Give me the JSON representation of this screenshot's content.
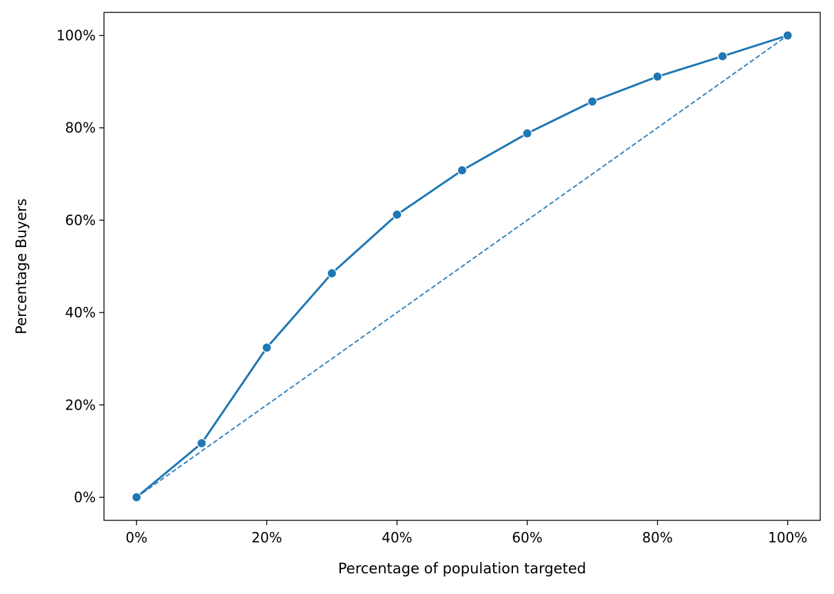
{
  "chart_data": {
    "type": "line",
    "title": "",
    "xlabel": "Percentage of population targeted",
    "ylabel": "Percentage Buyers",
    "xlim": [
      -0.05,
      1.05
    ],
    "ylim": [
      -0.05,
      1.05
    ],
    "xticks": [
      0,
      0.2,
      0.4,
      0.6,
      0.8,
      1.0
    ],
    "xtick_labels": [
      "0%",
      "20%",
      "40%",
      "60%",
      "80%",
      "100%"
    ],
    "yticks": [
      0,
      0.2,
      0.4,
      0.6,
      0.8,
      1.0
    ],
    "ytick_labels": [
      "0%",
      "20%",
      "40%",
      "60%",
      "80%",
      "100%"
    ],
    "grid": false,
    "legend": "none",
    "series": [
      {
        "style": "solid-with-markers",
        "color": "#1f77b4",
        "x": [
          0,
          0.1,
          0.2,
          0.3,
          0.4,
          0.5,
          0.6,
          0.7,
          0.8,
          0.9,
          1.0
        ],
        "y": [
          0,
          0.117,
          0.324,
          0.485,
          0.612,
          0.708,
          0.788,
          0.857,
          0.911,
          0.955,
          1.0
        ]
      },
      {
        "style": "dashed",
        "color": "#1f77b4",
        "x": [
          0,
          1.0
        ],
        "y": [
          0,
          1.0
        ]
      }
    ]
  }
}
